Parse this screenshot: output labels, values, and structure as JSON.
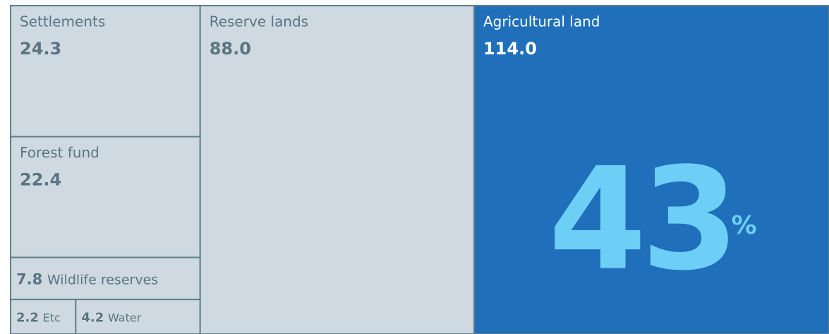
{
  "chart_data": {
    "type": "treemap",
    "categories": [
      "Settlements",
      "Forest fund",
      "Wildlife reserves",
      "Etc",
      "Water",
      "Reserve lands",
      "Agricultural land"
    ],
    "values": [
      24.3,
      22.4,
      7.8,
      2.2,
      4.2,
      88.0,
      114.0
    ],
    "value_labels": [
      "24.3",
      "22.4",
      "7.8",
      "2.2",
      "4.2",
      "88.0",
      "114.0"
    ],
    "colors": [
      "#cfd9e2",
      "#cfd9e2",
      "#cfd9e2",
      "#cfd9e2",
      "#cfd9e2",
      "#cfd9e2",
      "#1f6fba"
    ],
    "highlight": 43,
    "highlight_unit": "%",
    "highlight_color": "#6dcff6"
  }
}
